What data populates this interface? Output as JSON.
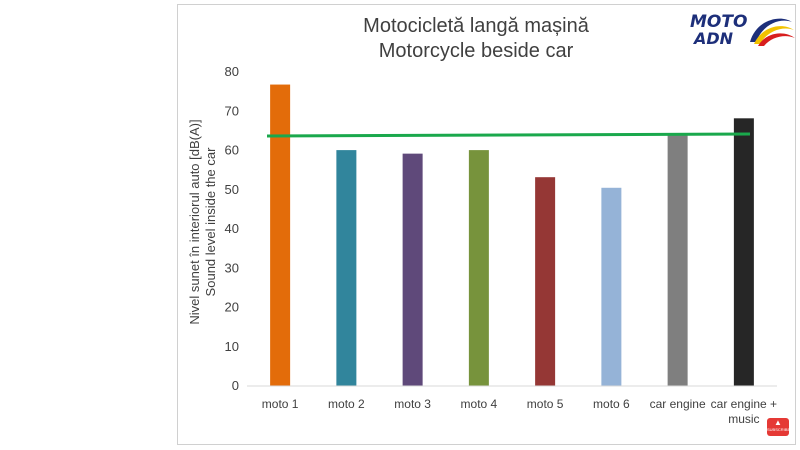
{
  "logo": {
    "line1": "MOTO",
    "line2": "ADN"
  },
  "subscribe": {
    "label": "SUBSCRIBE"
  },
  "chart_data": {
    "type": "bar",
    "title": [
      "Motocicletă langă  mașină",
      "Motorcycle beside car"
    ],
    "ylabel": [
      "Nivel sunet în interiorul auto [dB(A)]",
      "Sound level inside the car"
    ],
    "xlabel": "",
    "categories": [
      "moto 1",
      "moto 2",
      "moto 3",
      "moto 4",
      "moto 5",
      "moto 6",
      "car engine",
      "car engine + music"
    ],
    "values": [
      76.8,
      60.1,
      59.2,
      60.1,
      53.2,
      50.5,
      64.0,
      68.2
    ],
    "colors": [
      "#e36c0a",
      "#31859c",
      "#5f497a",
      "#77933c",
      "#953735",
      "#95b3d7",
      "#7f7f7f",
      "#262626"
    ],
    "ylim": [
      0,
      80
    ],
    "yticks": [
      0,
      10,
      20,
      30,
      40,
      50,
      60,
      70,
      80
    ],
    "reference_line": {
      "start": 63.7,
      "end": 64.2,
      "color": "#1aa84c"
    },
    "grid": false,
    "legend": "none"
  }
}
